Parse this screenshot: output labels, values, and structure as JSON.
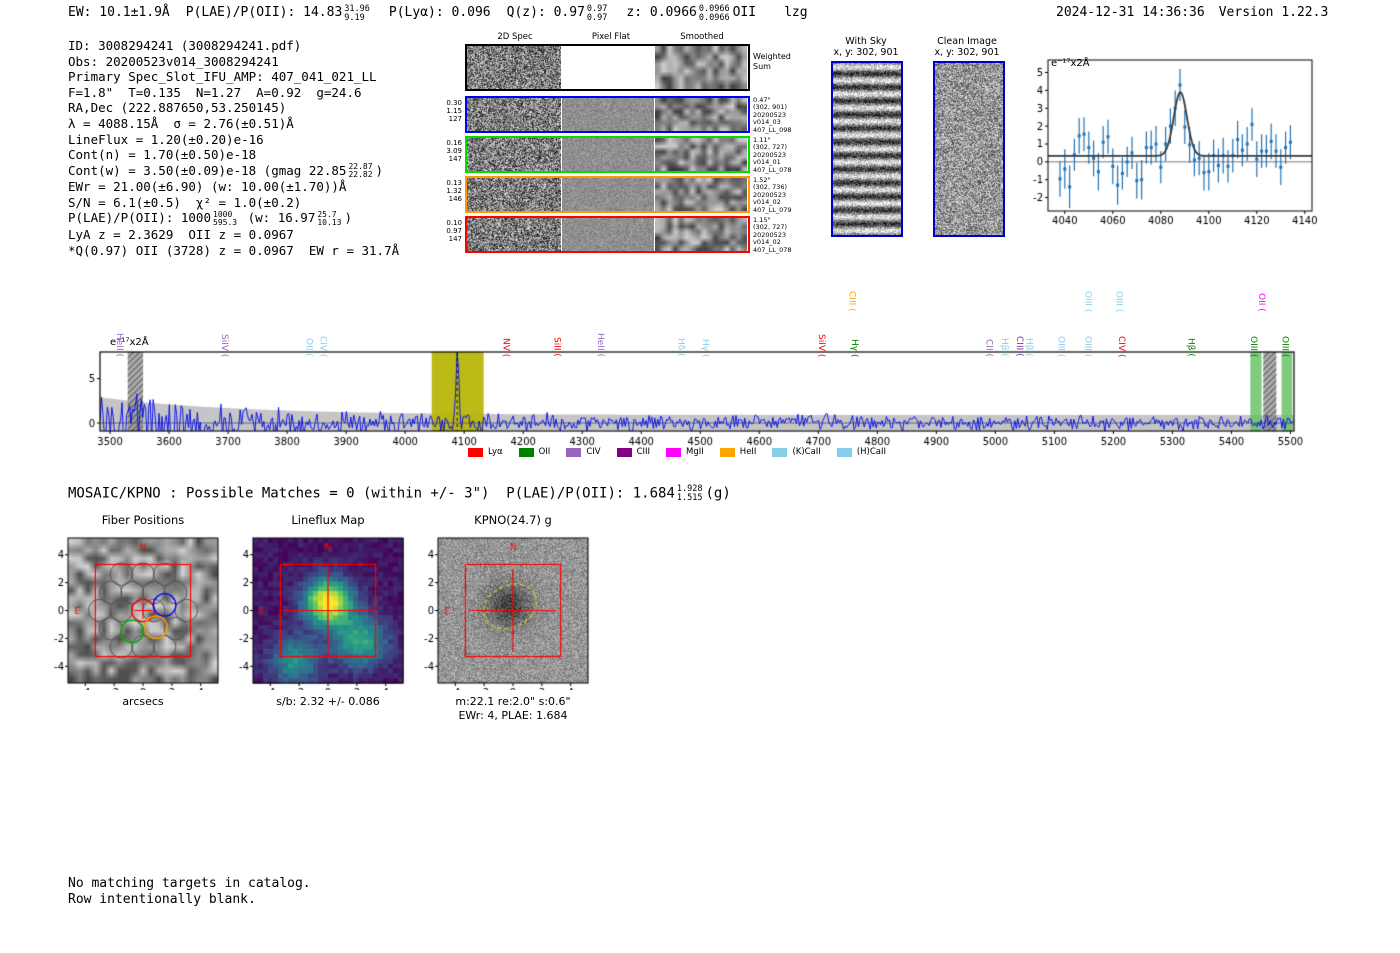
{
  "header": {
    "ew": "EW: 10.1±1.9Å",
    "plae": "P(LAE)/P(OII): 14.83",
    "plae_sup": "31.96",
    "plae_sub": "9.19",
    "plya": "P(Lyα): 0.096",
    "qz": "Q(z): 0.97",
    "qz_sup": "0.97",
    "qz_sub": "0.97",
    "z": "z: 0.0966",
    "z_sup": "0.0966",
    "z_sub": "0.0966",
    "z_type": "OII",
    "flags": "lzg",
    "datetime": "2024-12-31 14:36:36",
    "version": "Version 1.22.3"
  },
  "info": {
    "id": "ID: 3008294241 (3008294241.pdf)",
    "obs": "Obs: 20200523v014_3008294241",
    "slot": "Primary Spec_Slot_IFU_AMP: 407_041_021_LL",
    "seeing": "F=1.8\"  T=0.135  N=1.27  A=0.92  g=24.6",
    "radec": "RA,Dec (222.887650,53.250145)",
    "lambda": "λ = 4088.15Å  σ = 2.76(±0.51)Å",
    "lineflux": "LineFlux = 1.20(±0.20)e-16",
    "contn": "Cont(n) = 1.70(±0.50)e-18",
    "contw_pre": "Cont(w) = 3.50(±0.09)e-18 (gmag 22.85",
    "contw_sup": "22.87",
    "contw_sub": "22.82",
    "contw_post": ")",
    "ewr": "EWr = 21.00(±6.90) (w: 10.00(±1.70))Å",
    "sn": "S/N = 6.1(±0.5)  χ² = 1.0(±0.2)",
    "plae_pre": "P(LAE)/P(OII): 1000",
    "plae_sup": "1000",
    "plae_sub": "595.3",
    "plae_mid": " (w: 16.97",
    "plae_sup2": "25.7",
    "plae_sub2": "10.13",
    "plae_post": ")",
    "zsolutions": "LyA z = 2.3629  OII z = 0.0967",
    "best": "*Q(0.97) OII (3728) z = 0.0967  EW r = 31.7Å"
  },
  "spec2d": {
    "col_headers": [
      "2D Spec",
      "Pixel Flat",
      "Smoothed"
    ],
    "rows": [
      {
        "border": "#000000",
        "left": [],
        "right": [
          "Weighted",
          "Sum"
        ],
        "weighted": true
      },
      {
        "border": "#0000ff",
        "left": [
          "0.30",
          "1.15",
          "127"
        ],
        "right": [
          "0.47\"",
          "(302, 901)",
          "20200523",
          "v014_03",
          "407_LL_098"
        ]
      },
      {
        "border": "#00dd00",
        "left": [
          "0.16",
          "3.09",
          "147"
        ],
        "right": [
          "1.11\"",
          "(302, 727)",
          "20200523",
          "v014_01",
          "407_LL_078"
        ]
      },
      {
        "border": "#ff9900",
        "left": [
          "0.13",
          "1.32",
          "146"
        ],
        "right": [
          "1.52\"",
          "(302, 736)",
          "20200523",
          "v014_02",
          "407_LL_079"
        ]
      },
      {
        "border": "#ff0000",
        "left": [
          "0.10",
          "0.97",
          "147"
        ],
        "right": [
          "1.15\"",
          "(302, 727)",
          "20200523",
          "v014_02",
          "407_LL_078"
        ]
      }
    ]
  },
  "ccd_cutouts": {
    "withsky_title": "With Sky",
    "withsky_xy": "x, y: 302, 901",
    "clean_title": "Clean Image",
    "clean_xy": "x, y: 302, 901",
    "border_color": "#0000cc"
  },
  "mosaic": {
    "pre": "MOSAIC/KPNO : Possible Matches = 0 (within +/- 3\")  P(LAE)/P(OII): 1.684",
    "sup": "1.928",
    "sub": "1.515",
    "post": "(g)"
  },
  "footer": {
    "line1": "No matching targets in catalog.",
    "line2": "Row intentionally blank."
  },
  "chart_data": [
    {
      "id": "line_fit",
      "type": "scatter",
      "annotation": "e⁻¹⁷x2Å",
      "x": [
        4038,
        4040,
        4042,
        4044,
        4046,
        4048,
        4050,
        4052,
        4054,
        4056,
        4058,
        4060,
        4062,
        4064,
        4066,
        4068,
        4070,
        4072,
        4074,
        4076,
        4078,
        4080,
        4082,
        4084,
        4086,
        4088,
        4090,
        4092,
        4094,
        4096,
        4098,
        4100,
        4102,
        4104,
        4106,
        4108,
        4110,
        4112,
        4114,
        4116,
        4118,
        4120,
        4122,
        4124,
        4126,
        4128,
        4130,
        4132,
        4134
      ],
      "y": [
        -0.95,
        -0.4,
        -1.4,
        0.4,
        1.45,
        1.55,
        0.8,
        0.2,
        -0.55,
        1.1,
        1.4,
        -0.25,
        -1.3,
        -0.65,
        0.0,
        0.5,
        -1.05,
        -1.0,
        0.8,
        0.8,
        1.0,
        -0.3,
        1.0,
        2.0,
        3.0,
        4.3,
        1.95,
        0.95,
        0.1,
        0.2,
        -0.6,
        -0.55,
        0.35,
        -0.2,
        0.35,
        -0.25,
        0.35,
        1.25,
        0.65,
        1.0,
        2.1,
        0.15,
        0.6,
        0.6,
        1.15,
        0.6,
        -0.3,
        0.8,
        1.1
      ],
      "yerr": [
        1.0,
        1.1,
        1.2,
        0.9,
        1.0,
        0.95,
        0.9,
        1.0,
        1.05,
        0.9,
        0.95,
        1.0,
        1.1,
        0.9,
        0.85,
        0.9,
        1.0,
        1.1,
        0.9,
        0.95,
        1.0,
        0.9,
        0.95,
        1.0,
        1.0,
        0.9,
        0.95,
        1.0,
        0.9,
        0.95,
        1.0,
        1.05,
        0.9,
        0.95,
        1.0,
        0.9,
        0.95,
        1.05,
        0.9,
        0.95,
        0.9,
        1.0,
        0.95,
        0.9,
        1.0,
        0.95,
        1.0,
        0.9,
        0.95
      ],
      "fit": {
        "mu": 4088.15,
        "sigma": 2.76,
        "amp": 3.57,
        "baseline": 0.33
      },
      "xticks": [
        4040,
        4060,
        4080,
        4100,
        4120,
        4140
      ],
      "yticks": [
        -2,
        -1,
        0,
        1,
        2,
        3,
        4,
        5
      ],
      "xlim": [
        4033,
        4143
      ],
      "ylim": [
        -2.75,
        5.7
      ],
      "marker_color": "#2273b5",
      "fit_color": "#3a3a3a"
    },
    {
      "id": "full_spectrum",
      "type": "line",
      "annotation": "e⁻¹⁷x2Å",
      "xlim": [
        3483,
        5506
      ],
      "ylim": [
        -0.9,
        8.0
      ],
      "xticks": [
        3500,
        3600,
        3700,
        3800,
        3900,
        4000,
        4100,
        4200,
        4300,
        4400,
        4500,
        4600,
        4700,
        4800,
        4900,
        5000,
        5100,
        5200,
        5300,
        5400,
        5500
      ],
      "yticks": [
        0,
        5
      ],
      "emission": {
        "mu": 4088.15,
        "sigma": 2.76,
        "peak": 7.6
      },
      "dashed_line_x": 4088.15,
      "line_color": "#0008ee",
      "envelope_color": "#bfbfbf",
      "bands": [
        {
          "x0": 3530,
          "x1": 3556,
          "type": "hatch"
        },
        {
          "x0": 4045,
          "x1": 4133,
          "type": "olive"
        },
        {
          "x0": 5432,
          "x1": 5451,
          "type": "green"
        },
        {
          "x0": 5454,
          "x1": 5476,
          "type": "hatch"
        },
        {
          "x0": 5485,
          "x1": 5503,
          "type": "green"
        }
      ],
      "band_colors": {
        "olive": "#b8b60a",
        "green": "#5fbf5f",
        "hatch": "#8c8c8c"
      },
      "line_labels": [
        {
          "text": "HeII (",
          "color": "#9467bd",
          "x": 3517,
          "row": "low"
        },
        {
          "text": "SiIV (",
          "color": "#9467bd",
          "x": 3695,
          "row": "low"
        },
        {
          "text": "OII (",
          "color": "#87ceeb",
          "x": 3838,
          "row": "low"
        },
        {
          "text": "CIV (",
          "color": "#87ceeb",
          "x": 3862,
          "row": "low"
        },
        {
          "text": "NV (",
          "color": "#ff0000",
          "x": 4172,
          "row": "low"
        },
        {
          "text": "SiII (",
          "color": "#ff0000",
          "x": 4258,
          "row": "low"
        },
        {
          "text": "HeII (",
          "color": "#9467bd",
          "x": 4332,
          "row": "low"
        },
        {
          "text": "Hδ (",
          "color": "#87ceeb",
          "x": 4468,
          "row": "low"
        },
        {
          "text": "Hγ (",
          "color": "#87ceeb",
          "x": 4510,
          "row": "low"
        },
        {
          "text": "CIII (",
          "color": "#ffa500",
          "x": 4758,
          "row": "high"
        },
        {
          "text": "SiIV (",
          "color": "#ff0000",
          "x": 4706,
          "row": "low"
        },
        {
          "text": "Hγ (",
          "color": "#008000",
          "x": 4762,
          "row": "low"
        },
        {
          "text": "CII (",
          "color": "#9467bd",
          "x": 4990,
          "row": "low"
        },
        {
          "text": "Hβ (",
          "color": "#87ceeb",
          "x": 5016,
          "row": "low"
        },
        {
          "text": "CIII (",
          "color": "#7b2fbe",
          "x": 5042,
          "row": "low"
        },
        {
          "text": "Hβ (",
          "color": "#87ceeb",
          "x": 5058,
          "row": "low"
        },
        {
          "text": "OIII (",
          "color": "#87ceeb",
          "x": 5112,
          "row": "low"
        },
        {
          "text": "OIII (",
          "color": "#87ceeb",
          "x": 5158,
          "row": "low"
        },
        {
          "text": "OIII (",
          "color": "#87ceeb",
          "x": 5158,
          "row": "high"
        },
        {
          "text": "OIII (",
          "color": "#87ceeb",
          "x": 5210,
          "row": "high"
        },
        {
          "text": "CIV (",
          "color": "#ff0000",
          "x": 5215,
          "row": "low"
        },
        {
          "text": "Hβ (",
          "color": "#008000",
          "x": 5332,
          "row": "low"
        },
        {
          "text": "OIII (",
          "color": "#008000",
          "x": 5438,
          "row": "low"
        },
        {
          "text": "OII (",
          "color": "#ff00ff",
          "x": 5452,
          "row": "high"
        },
        {
          "text": "OIII (",
          "color": "#008000",
          "x": 5492,
          "row": "low"
        }
      ],
      "legend": [
        {
          "label": "Lyα",
          "color": "#ff0000"
        },
        {
          "label": "OII",
          "color": "#008000"
        },
        {
          "label": "CIV",
          "color": "#9467bd"
        },
        {
          "label": "CIII",
          "color": "#800080"
        },
        {
          "label": "MgII",
          "color": "#ff00ff"
        },
        {
          "label": "HeII",
          "color": "#ffa500"
        },
        {
          "label": "(K)CaII",
          "color": "#87ceeb"
        },
        {
          "label": "(H)CaII",
          "color": "#87ceeb"
        }
      ]
    },
    {
      "id": "fiber_positions",
      "type": "scatter",
      "title": "Fiber Positions",
      "xlabel": "arcsecs",
      "xticks": [
        -4,
        -2,
        0,
        2,
        4
      ],
      "yticks": [
        4,
        2,
        0,
        -2,
        -4
      ],
      "xlim": [
        -5.2,
        5.2
      ],
      "ylim": [
        -5.2,
        5.2
      ],
      "ifu_box": 3.3,
      "fiber_radius": 0.78,
      "compass_n": "N",
      "compass_e": "E",
      "grey_fibers": [
        [
          -1.5,
          2.6
        ],
        [
          0,
          2.6
        ],
        [
          1.5,
          2.6
        ],
        [
          -2.25,
          1.3
        ],
        [
          -0.75,
          1.3
        ],
        [
          0.75,
          1.3
        ],
        [
          2.25,
          1.3
        ],
        [
          -3,
          0
        ],
        [
          -1.5,
          0
        ],
        [
          3,
          0
        ],
        [
          -2.25,
          -1.3
        ],
        [
          2.25,
          -1.3
        ],
        [
          -1.5,
          -2.6
        ],
        [
          0,
          -2.6
        ],
        [
          1.5,
          -2.6
        ],
        [
          0.75,
          0
        ]
      ],
      "colored_fibers": [
        {
          "x": 0,
          "y": 0,
          "color": "#ff0000"
        },
        {
          "x": 1.5,
          "y": 0.4,
          "color": "#0000ff"
        },
        {
          "x": -0.75,
          "y": -1.5,
          "color": "#00aa00"
        },
        {
          "x": 0.9,
          "y": -1.2,
          "color": "#ff9900"
        }
      ]
    },
    {
      "id": "lineflux_map",
      "type": "heatmap",
      "title": "Lineflux Map",
      "xlabel": "s/b: 2.32 +/- 0.086",
      "xticks": [
        -4,
        -2,
        0,
        2,
        4
      ],
      "yticks": [
        4,
        2,
        0,
        -2,
        -4
      ],
      "xlim": [
        -5.2,
        5.2
      ],
      "ylim": [
        -5.2,
        5.2
      ],
      "colormap": "viridis",
      "ifu_box": 3.3,
      "compass_n": "N",
      "compass_e": "E",
      "blobs": [
        {
          "x": 0,
          "y": 0.6,
          "sigma": 1.15,
          "amp": 1.0
        },
        {
          "x": 2.2,
          "y": -2.2,
          "sigma": 1.3,
          "amp": 0.55
        },
        {
          "x": -2.3,
          "y": -3.6,
          "sigma": 1.2,
          "amp": 0.45
        }
      ]
    },
    {
      "id": "kpno_g",
      "type": "image",
      "title": "KPNO(24.7) g",
      "xlabel1": "m:22.1  re:2.0\"  s:0.6\"",
      "xlabel2": "EWr: 4, PLAE: 1.684",
      "xticks": [
        -4,
        -2,
        0,
        2,
        4
      ],
      "yticks": [
        4,
        2,
        0,
        -2,
        -4
      ],
      "xlim": [
        -5.2,
        5.2
      ],
      "ylim": [
        -5.2,
        5.2
      ],
      "ifu_box": 3.3,
      "compass_n": "N",
      "compass_e": "E",
      "ellipse": {
        "cx": -0.2,
        "cy": 0.3,
        "rx": 1.9,
        "ry": 1.5,
        "rot": -25,
        "color": "#d4c53a"
      },
      "blob": {
        "x": -0.3,
        "y": 0.4,
        "sigma": 1.1,
        "depth": 85
      }
    }
  ]
}
